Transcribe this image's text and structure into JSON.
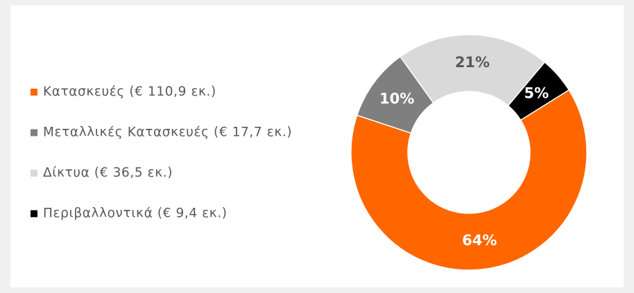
{
  "chart_data": {
    "type": "donut",
    "series": [
      {
        "name": "Κατασκευές (€ 110,9 εκ.)",
        "color": "#ff6600",
        "values": [
          64
        ],
        "value_labels": [
          "64%"
        ]
      },
      {
        "name": "Μεταλλικές Κατασκευές (€ 17,7 εκ.)",
        "color": "#7f7f7f",
        "values": [
          10
        ],
        "value_labels": [
          "10%"
        ]
      },
      {
        "name": "Δίκτυα (€ 36,5 εκ.)",
        "color": "#d9d9d9",
        "values": [
          21
        ],
        "value_labels": [
          "21%"
        ]
      },
      {
        "name": "Περιβαλλοντικά (€ 9,4 εκ.)",
        "color": "#000000",
        "values": [
          5
        ],
        "value_labels": [
          "5%"
        ]
      }
    ],
    "legend": "left"
  }
}
